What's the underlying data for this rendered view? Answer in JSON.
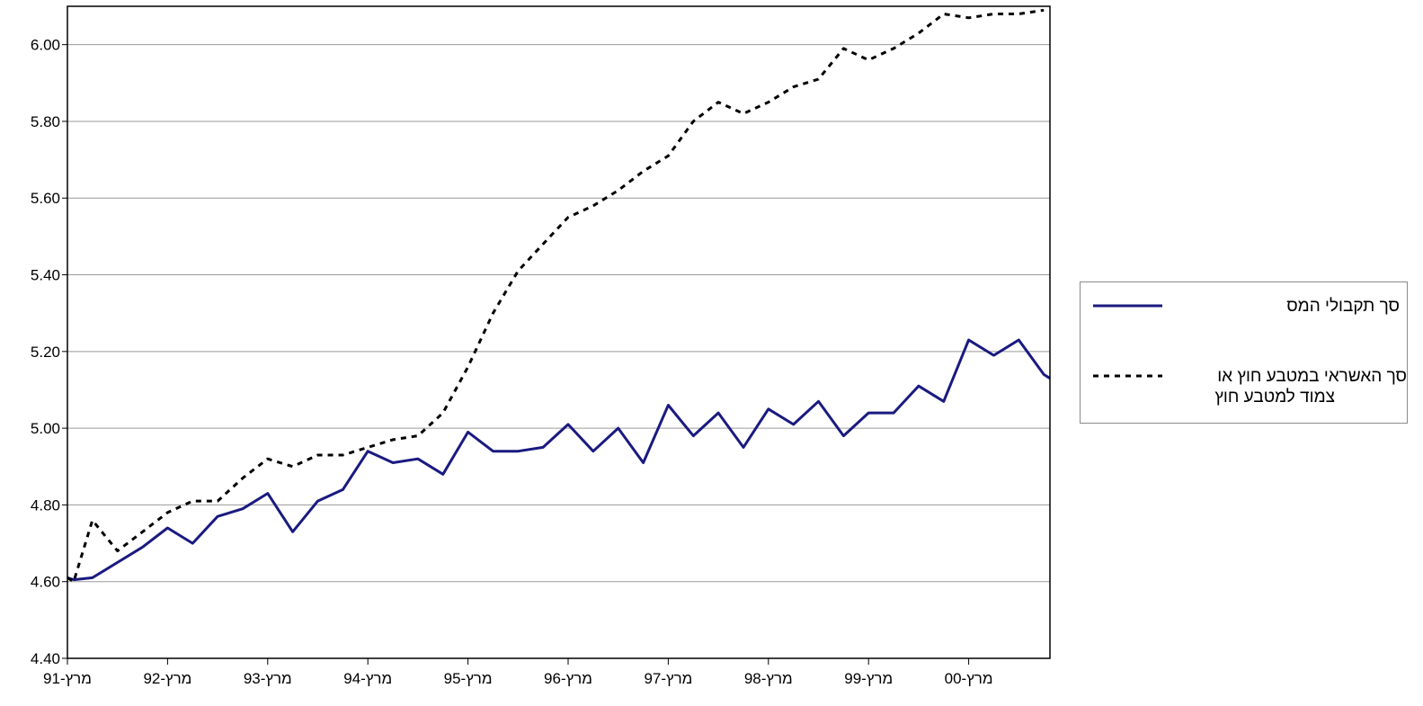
{
  "chart_data": {
    "type": "line",
    "title": "",
    "xlabel": "",
    "ylabel": "",
    "ylim": [
      4.4,
      6.1
    ],
    "yticks": [
      "4.40",
      "4.60",
      "4.80",
      "5.00",
      "5.20",
      "5.40",
      "5.60",
      "5.80",
      "6.00"
    ],
    "ytick_values": [
      4.4,
      4.6,
      4.8,
      5.0,
      5.2,
      5.4,
      5.6,
      5.8,
      6.0
    ],
    "x_tick_labels": [
      "מרץ-91",
      "מרץ-92",
      "מרץ-93",
      "מרץ-94",
      "מרץ-95",
      "מרץ-96",
      "מרץ-97",
      "מרץ-98",
      "מרץ-99",
      "מרץ-00"
    ],
    "x_tick_values": [
      0,
      4,
      8,
      12,
      16,
      20,
      24,
      28,
      32,
      36
    ],
    "xlim": [
      0,
      39.25
    ],
    "grid": true,
    "legend_position": "right",
    "series": [
      {
        "name": "סך תקבולי המס",
        "style": "solid",
        "color": "#1a1a80",
        "x": [
          0,
          0.25,
          1,
          2,
          3,
          4,
          5,
          6,
          7,
          8,
          9,
          10,
          11,
          12,
          13,
          14,
          15,
          16,
          17,
          18,
          19,
          20,
          21,
          22,
          23,
          24,
          25,
          26,
          27,
          28,
          29,
          30,
          31,
          32,
          33,
          34,
          35,
          36,
          37,
          38,
          39,
          39.25
        ],
        "values": [
          4.61,
          4.605,
          4.61,
          4.65,
          4.69,
          4.74,
          4.7,
          4.77,
          4.79,
          4.83,
          4.73,
          4.81,
          4.84,
          4.94,
          4.91,
          4.92,
          4.88,
          4.99,
          4.94,
          4.94,
          4.95,
          5.01,
          4.94,
          5.0,
          4.91,
          5.06,
          4.98,
          5.04,
          4.95,
          5.05,
          5.01,
          5.07,
          4.98,
          5.04,
          5.04,
          5.11,
          5.07,
          5.23,
          5.19,
          5.23,
          5.14,
          5.13
        ]
      },
      {
        "name": "סך האשראי במטבע חוץ או צמוד למטבע חוץ",
        "style": "dashed",
        "color": "#000000",
        "x": [
          0,
          0.25,
          1,
          2,
          3,
          4,
          5,
          6,
          7,
          8,
          9,
          10,
          11,
          12,
          13,
          14,
          15,
          16,
          17,
          18,
          19,
          20,
          21,
          22,
          23,
          24,
          25,
          26,
          27,
          28,
          29,
          30,
          31,
          32,
          33,
          34,
          35,
          36,
          37,
          38,
          39
        ],
        "values": [
          4.61,
          4.6,
          4.76,
          4.68,
          4.73,
          4.78,
          4.81,
          4.81,
          4.87,
          4.92,
          4.9,
          4.93,
          4.93,
          4.95,
          4.97,
          4.98,
          5.04,
          5.16,
          5.3,
          5.41,
          5.48,
          5.55,
          5.58,
          5.62,
          5.67,
          5.71,
          5.8,
          5.85,
          5.82,
          5.85,
          5.89,
          5.91,
          5.99,
          5.96,
          5.99,
          6.03,
          6.08,
          6.07,
          6.08,
          6.08,
          6.09
        ]
      }
    ]
  },
  "legend": {
    "items": [
      {
        "label_lines": [
          "סך תקבולי המס"
        ]
      },
      {
        "label_lines": [
          "סך האשראי במטבע חוץ או",
          "צמוד למטבע חוץ"
        ]
      }
    ]
  }
}
